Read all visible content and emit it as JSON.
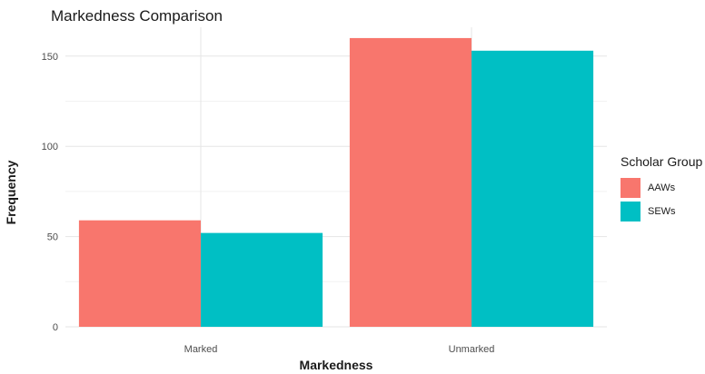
{
  "chart_data": {
    "type": "bar",
    "title": "Markedness Comparison",
    "xlabel": "Markedness",
    "ylabel": "Frequency",
    "categories": [
      "Marked",
      "Unmarked"
    ],
    "series": [
      {
        "name": "AAWs",
        "color": "#F8766D",
        "values": [
          59,
          160
        ]
      },
      {
        "name": "SEWs",
        "color": "#00BFC4",
        "values": [
          52,
          153
        ]
      }
    ],
    "yticks": [
      0,
      50,
      100,
      150
    ],
    "ylim": [
      0,
      166
    ],
    "legend": {
      "title": "Scholar Group",
      "position": "right"
    },
    "grid": true
  }
}
